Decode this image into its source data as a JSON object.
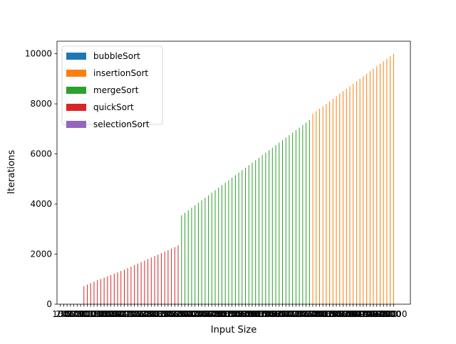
{
  "chart_data": {
    "type": "bar",
    "title": "",
    "xlabel": "Input Size",
    "ylabel": "Iterations",
    "ylim": [
      0,
      10500
    ],
    "xlim": [
      0,
      10500
    ],
    "grid": false,
    "legend_position": "top-left",
    "yticks": [
      0,
      2000,
      4000,
      6000,
      8000,
      10000
    ],
    "xtick_labels": [
      "100",
      "200",
      "300",
      "400",
      "500",
      "600",
      "700",
      "800",
      "900",
      "1000",
      "1100",
      "1200",
      "1300",
      "1400",
      "1500",
      "1600",
      "1700",
      "1800",
      "1900",
      "2000",
      "2100",
      "2200",
      "2300",
      "2400",
      "2500",
      "2600",
      "2700",
      "2800",
      "2900",
      "3000",
      "3100",
      "3200",
      "3300",
      "3400",
      "3500",
      "3600",
      "3700",
      "3800",
      "3900",
      "4000",
      "4100",
      "4200",
      "4300",
      "4400",
      "4500",
      "4600",
      "4700",
      "4800",
      "4900",
      "5000",
      "5100",
      "5200",
      "5300",
      "5400",
      "5500",
      "5600",
      "5700",
      "5800",
      "5900",
      "6000",
      "6100",
      "6200",
      "6300",
      "6400",
      "6500",
      "6600",
      "6700",
      "6800",
      "6900",
      "7000",
      "7100",
      "7200",
      "7300",
      "7400",
      "7500",
      "7600",
      "7700",
      "7800",
      "7900",
      "8000",
      "8100",
      "8200",
      "8300",
      "8400",
      "8500",
      "8600",
      "8700",
      "8800",
      "8900",
      "9000",
      "9100",
      "9200",
      "9300",
      "9400",
      "9500",
      "9600",
      "9700",
      "9800",
      "9900",
      "10000"
    ],
    "series": [
      {
        "name": "bubbleSort",
        "color": "#1f77b4",
        "x": [],
        "values": []
      },
      {
        "name": "insertionSort",
        "color": "#ff7f0e",
        "x": [
          7600,
          7700,
          7800,
          7900,
          8000,
          8100,
          8200,
          8300,
          8400,
          8500,
          8600,
          8700,
          8800,
          8900,
          9000,
          9100,
          9200,
          9300,
          9400,
          9500,
          9600,
          9700,
          9800,
          9900,
          10000
        ],
        "values": [
          7600,
          7700,
          7800,
          7900,
          8000,
          8100,
          8200,
          8300,
          8400,
          8500,
          8600,
          8700,
          8800,
          8900,
          9000,
          9100,
          9200,
          9300,
          9400,
          9500,
          9600,
          9700,
          9800,
          9900,
          10000
        ]
      },
      {
        "name": "mergeSort",
        "color": "#2ca02c",
        "x": [
          3700,
          3800,
          3900,
          4000,
          4100,
          4200,
          4300,
          4400,
          4500,
          4600,
          4700,
          4800,
          4900,
          5000,
          5100,
          5200,
          5300,
          5400,
          5500,
          5600,
          5700,
          5800,
          5900,
          6000,
          6100,
          6200,
          6300,
          6400,
          6500,
          6600,
          6700,
          6800,
          6900,
          7000,
          7100,
          7200,
          7300,
          7400,
          7500
        ],
        "values": [
          3550,
          3650,
          3750,
          3850,
          3950,
          4050,
          4150,
          4250,
          4350,
          4450,
          4550,
          4650,
          4750,
          4850,
          4950,
          5050,
          5150,
          5250,
          5350,
          5450,
          5550,
          5650,
          5750,
          5850,
          5950,
          6050,
          6150,
          6250,
          6350,
          6450,
          6550,
          6650,
          6750,
          6850,
          6950,
          7050,
          7150,
          7250,
          7350
        ]
      },
      {
        "name": "quickSort",
        "color": "#d62728",
        "x": [
          800,
          900,
          1000,
          1100,
          1200,
          1300,
          1400,
          1500,
          1600,
          1700,
          1800,
          1900,
          2000,
          2100,
          2200,
          2300,
          2400,
          2500,
          2600,
          2700,
          2800,
          2900,
          3000,
          3100,
          3200,
          3300,
          3400,
          3500,
          3600
        ],
        "values": [
          720,
          780,
          840,
          900,
          960,
          1010,
          1060,
          1110,
          1160,
          1220,
          1270,
          1330,
          1380,
          1440,
          1500,
          1560,
          1620,
          1680,
          1740,
          1800,
          1860,
          1920,
          1980,
          2040,
          2100,
          2160,
          2220,
          2280,
          2350
        ]
      },
      {
        "name": "selectionSort",
        "color": "#9467bd",
        "x": [],
        "values": []
      }
    ]
  }
}
